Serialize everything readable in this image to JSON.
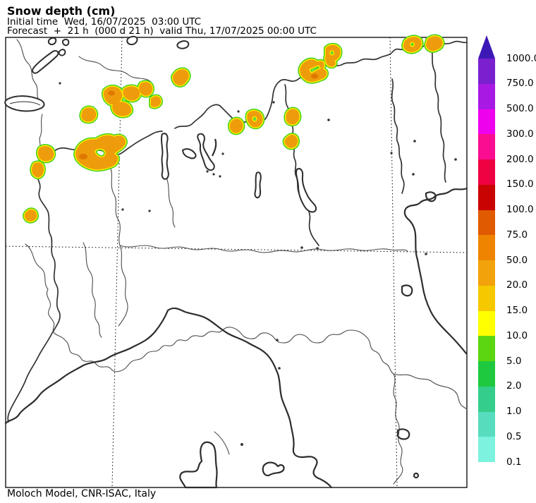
{
  "header": {
    "title": "Snow depth (cm)",
    "line1": "Initial time  Wed, 16/07/2025  03:00 UTC",
    "line2": "Forecast  +  21 h  (000 d 21 h)  valid Thu, 17/07/2025 00:00 UTC"
  },
  "footer": {
    "credit": "Moloch Model, CNR-ISAC, Italy"
  },
  "colorbar": {
    "unit": "cm",
    "labels": [
      "1000.0",
      "750.0",
      "500.0",
      "300.0",
      "200.0",
      "150.0",
      "100.0",
      "75.0",
      "50.0",
      "20.0",
      "15.0",
      "10.0",
      "5.0",
      "2.0",
      "1.0",
      "0.5",
      "0.1"
    ],
    "colors": [
      "#7A20CE",
      "#A81AE4",
      "#EE02EE",
      "#FB0D92",
      "#EF0241",
      "#C90202",
      "#E05A00",
      "#EE8400",
      "#F2A20B",
      "#F6C800",
      "#FFFF00",
      "#5BD611",
      "#1FC93F",
      "#35CD8C",
      "#57DCBE",
      "#7DF2DF"
    ],
    "arrow_color": "#3C18B5"
  },
  "map": {
    "frame_color": "#000000",
    "border_color": "#3a3a3a",
    "snow": {
      "outer": "#44D31C",
      "mid": "#FFE800",
      "fill": "#EE9C0C",
      "core": "#E07800"
    }
  },
  "chart_data": {
    "type": "heatmap",
    "title": "Snow depth (cm)",
    "legend_levels_cm": [
      0.1,
      0.5,
      1.0,
      2.0,
      5.0,
      10.0,
      15.0,
      20.0,
      50.0,
      75.0,
      100.0,
      150.0,
      200.0,
      300.0,
      500.0,
      750.0,
      1000.0
    ],
    "legend_position": "right",
    "notes": "Forecast snow depth patches (~20-50 cm, orange with 10-15 cm yellow and 5-10 cm green fringes) over the Alpine arc; rest of domain 0."
  }
}
